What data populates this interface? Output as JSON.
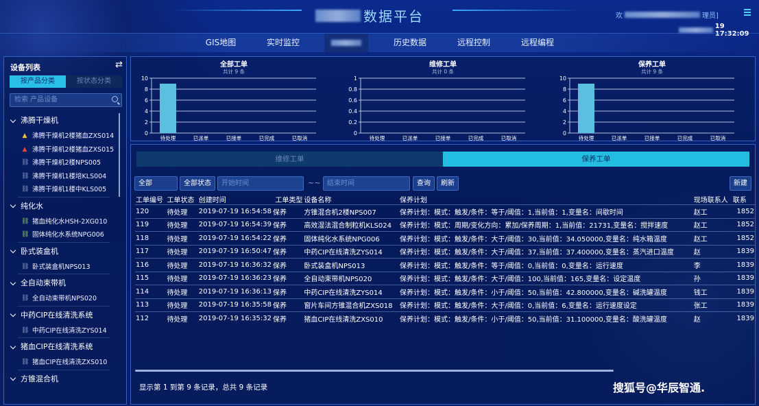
{
  "header": {
    "title": "数据平台",
    "welcome_prefix": "欢",
    "welcome_suffix": "理员]",
    "clock": "19 17:32:09"
  },
  "nav": [
    {
      "label": "GIS地图"
    },
    {
      "label": "实时监控"
    },
    {
      "label": ""
    },
    {
      "label": "历史数据"
    },
    {
      "label": "远程控制"
    },
    {
      "label": "远程编程"
    }
  ],
  "sidebar": {
    "title": "设备列表",
    "tabs": [
      "按产品分类",
      "按状态分类"
    ],
    "search_placeholder": "检索 产品设备",
    "groups": [
      {
        "name": "沸腾干燥机",
        "items": [
          {
            "label": "沸腾干燥机2楼猪血ZXS014",
            "icon": "warning-yellow"
          },
          {
            "label": "沸腾干燥机2楼猪血ZXS015",
            "icon": "warning-red"
          },
          {
            "label": "沸腾干燥机2楼NPS005",
            "icon": "link-broken"
          },
          {
            "label": "沸腾干燥机1楼培KLS004",
            "icon": "link-broken"
          },
          {
            "label": "沸腾干燥机1楼中KLS005",
            "icon": "link-broken"
          }
        ]
      },
      {
        "name": "纯化水",
        "items": [
          {
            "label": "猪血纯化水HSH-2XG010",
            "icon": "link-green"
          },
          {
            "label": "固体纯化水系统NPG006",
            "icon": "link-green"
          }
        ]
      },
      {
        "name": "卧式装盒机",
        "items": [
          {
            "label": "卧式装盒机NPS013",
            "icon": "link-broken"
          }
        ]
      },
      {
        "name": "全自动束带机",
        "items": [
          {
            "label": "全自动束带机NPS020",
            "icon": "link-broken"
          }
        ]
      },
      {
        "name": "中药CIP在线清洗系统",
        "items": [
          {
            "label": "中药CIP在线清洗ZYS014",
            "icon": "link-broken"
          }
        ]
      },
      {
        "name": "猪血CIP在线清洗系统",
        "items": [
          {
            "label": "猪血CIP在线清洗ZXS010",
            "icon": "link-broken"
          }
        ]
      },
      {
        "name": "方锥混合机",
        "items": []
      }
    ]
  },
  "colors": {
    "bar": "#5bc0e0",
    "accent": "#22bde0",
    "warning_yellow": "#f2c12e",
    "warning_red": "#e8413c",
    "link_green": "#8fd14f"
  },
  "chart_data": [
    {
      "type": "bar",
      "title": "全部工单",
      "subtitle": "共计 9 条",
      "categories": [
        "待处理",
        "已派单",
        "已接单",
        "已完成",
        "已取消"
      ],
      "values": [
        9,
        0,
        0,
        0,
        0
      ],
      "ylim": [
        0,
        10
      ],
      "yticks": [
        "0",
        "2",
        "4",
        "6",
        "8",
        "10"
      ],
      "grid": true
    },
    {
      "type": "bar",
      "title": "维修工单",
      "subtitle": "共计 0 条",
      "categories": [
        "待处理",
        "已派单",
        "已接单",
        "已完成",
        "已取消"
      ],
      "values": [
        0,
        0,
        0,
        0,
        0
      ],
      "ylim": [
        0,
        1
      ],
      "yticks": [
        "0",
        "0.2",
        "0.4",
        "0.6",
        "0.8",
        "1"
      ],
      "grid": true
    },
    {
      "type": "bar",
      "title": "保养工单",
      "subtitle": "共计 9 条",
      "categories": [
        "待处理",
        "已派单",
        "已接单",
        "已完成",
        "已取消"
      ],
      "values": [
        9,
        0,
        0,
        0,
        0
      ],
      "ylim": [
        0,
        10
      ],
      "yticks": [
        "0",
        "2",
        "4",
        "6",
        "8",
        "10"
      ],
      "grid": true
    }
  ],
  "main": {
    "tabs": [
      "维修工单",
      "保养工单"
    ],
    "filters": {
      "type": "全部",
      "status": "全部状态",
      "start_placeholder": "开始时间",
      "tilde": "~~",
      "end_placeholder": "结束时间",
      "query": "查询",
      "refresh": "刷新",
      "new": "新建"
    },
    "columns": [
      "工单编号",
      "工单状态",
      "创建时间",
      "工单类型",
      "设备名称",
      "保养计划",
      "现场联系人",
      "联系"
    ],
    "rows": [
      [
        "120",
        "待处理",
        "2019-07-19 16:54:58",
        "保养",
        "方锥混合机2楼NPS007",
        "保养计划：模式：触发/条件：等于/阈值：1,当前值：1,变量名：间歇时间",
        "赵工",
        "1852"
      ],
      [
        "119",
        "待处理",
        "2019-07-19 16:54:39",
        "保养",
        "高效湿法混合制粒机KLS024",
        "保养计划：模式：周期/变化方向：累加/保养周期：1,当前值：21731,变量名：搅拌速度",
        "赵工",
        "1852"
      ],
      [
        "118",
        "待处理",
        "2019-07-19 16:54:22",
        "保养",
        "固体纯化水系统NPG006",
        "保养计划：模式：触发/条件：大于/阈值：30,当前值：34.050000,变量名：纯水箱温度",
        "赵工",
        "1852"
      ],
      [
        "117",
        "待处理",
        "2019-07-19 16:50:47",
        "保养",
        "中药CIP在线清洗ZYS014",
        "保养计划：模式：触发/条件：大于/阈值：37,当前值：37.400000,变量名：蒸汽进口温度",
        "赵",
        "1839"
      ],
      [
        "116",
        "待处理",
        "2019-07-19 16:36:32",
        "保养",
        "卧式装盒机NPS013",
        "保养计划：模式：触发/条件：等于/阈值：0,当前值：0,变量名：运行速度",
        "李",
        "1839"
      ],
      [
        "115",
        "待处理",
        "2019-07-19 16:36:23",
        "保养",
        "全自动束带机NPS020",
        "保养计划：模式：触发/条件：大于/阈值：100,当前值：165,变量名：设定温度",
        "孙",
        "1839"
      ],
      [
        "114",
        "待处理",
        "2019-07-19 16:36:13",
        "保养",
        "中药CIP在线清洗ZYS014",
        "保养计划：模式：触发/条件：小于/阈值：50,当前值：42.800000,变量名：碱洗罐温度",
        "钱工",
        "1839"
      ],
      [
        "113",
        "待处理",
        "2019-07-19 16:35:58",
        "保养",
        "窗片车间方锥混合机ZXS018",
        "保养计划：模式：触发/条件：大于/阈值：0,当前值：6,变量名：运行速度设定",
        "张工",
        "1839"
      ],
      [
        "112",
        "待处理",
        "2019-07-19 16:35:32",
        "保养",
        "猪血CIP在线清洗ZXS010",
        "保养计划：模式：触发/条件：小于/阈值：50,当前值：31.100000,变量名：酸洗罐温度",
        "赵",
        "1839"
      ]
    ],
    "footer": "显示第 1 到第 9 条记录，总共 9 条记录"
  },
  "watermark": "搜狐号@华辰智通."
}
